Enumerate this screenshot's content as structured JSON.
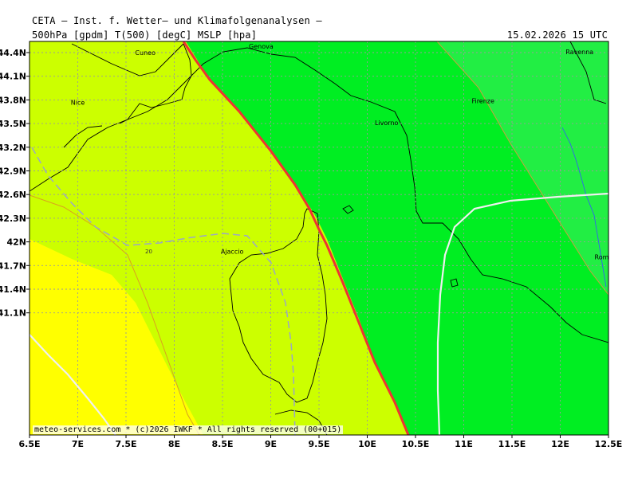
{
  "header": {
    "title": "CETA – Inst. f. Wetter– und Klimafolgenanalysen –",
    "parameters": "500hPa [gpdm] T(500) [degC] MSLP [hpa]",
    "valid_time": "15.02.2026 15 UTC"
  },
  "map": {
    "lon_ticks": [
      "6.5E",
      "7E",
      "7.5E",
      "8E",
      "8.5E",
      "9E",
      "9.5E",
      "10E",
      "10.5E",
      "11E",
      "11.5E",
      "12E",
      "12.5E"
    ],
    "lat_ticks": [
      "44.4N",
      "44.1N",
      "43.8N",
      "43.5N",
      "43.2N",
      "42.9N",
      "42.6N",
      "42.3N",
      "42N",
      "41.7N",
      "41.4N",
      "41.1N"
    ],
    "cities": [
      {
        "name": "Cuneo",
        "lon": 7.7,
        "lat": 44.37
      },
      {
        "name": "Genova",
        "lon": 8.9,
        "lat": 44.45
      },
      {
        "name": "Ravenna",
        "lon": 12.2,
        "lat": 44.38
      },
      {
        "name": "Nice",
        "lon": 7.0,
        "lat": 43.74
      },
      {
        "name": "Firenze",
        "lon": 11.2,
        "lat": 43.76
      },
      {
        "name": "Livorno",
        "lon": 10.2,
        "lat": 43.48
      },
      {
        "name": "Ajaccio",
        "lon": 8.6,
        "lat": 41.85
      },
      {
        "name": "Rome",
        "lon": 12.45,
        "lat": 41.78
      }
    ],
    "contour_labels": [
      "20"
    ],
    "colors": {
      "yellow": "#ffff00",
      "yellow_green": "#ccff00",
      "green": "#00ee22",
      "light_green": "#22ee44",
      "front_line": "#ee3333",
      "isobar": "#f0f0f0",
      "grid": "#9a9a9a"
    }
  },
  "footer": {
    "credit": "meteo-services.com * (c)2026 IWKF * All rights reserved (00+015)"
  }
}
